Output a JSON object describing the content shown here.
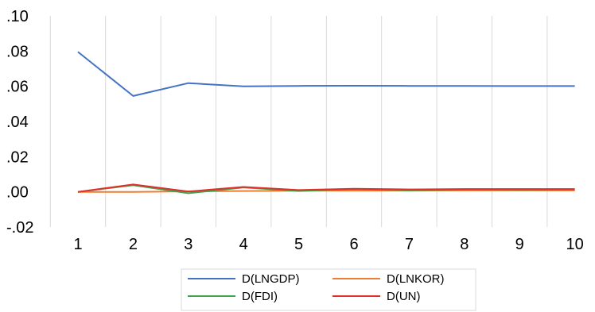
{
  "chart_data": {
    "type": "line",
    "title": "",
    "xlabel": "",
    "ylabel": "",
    "x": [
      1,
      2,
      3,
      4,
      5,
      6,
      7,
      8,
      9,
      10
    ],
    "x_tick_labels": [
      "1",
      "2",
      "3",
      "4",
      "5",
      "6",
      "7",
      "8",
      "9",
      "10"
    ],
    "ylim": [
      -0.02,
      0.1
    ],
    "y_ticks": [
      -0.02,
      0.0,
      0.02,
      0.04,
      0.06,
      0.08,
      0.1
    ],
    "y_tick_labels": [
      "-.02",
      ".00",
      ".02",
      ".04",
      ".06",
      ".08",
      ".10"
    ],
    "grid": "vertical",
    "legend_position": "bottom",
    "series": [
      {
        "name": "D(LNGDP)",
        "color": "#4472C4",
        "values": [
          0.0795,
          0.0545,
          0.0618,
          0.06,
          0.0602,
          0.0603,
          0.0602,
          0.0602,
          0.0601,
          0.0601
        ]
      },
      {
        "name": "D(LNKOR)",
        "color": "#ED7D31",
        "values": [
          0.0,
          0.0,
          0.0003,
          0.0005,
          0.0006,
          0.0007,
          0.0007,
          0.0008,
          0.0008,
          0.0008
        ]
      },
      {
        "name": "D(FDI)",
        "color": "#3FA34D",
        "values": [
          0.0,
          0.0038,
          -0.0008,
          0.0025,
          0.0005,
          0.0015,
          0.0008,
          0.0012,
          0.001,
          0.0012
        ]
      },
      {
        "name": "D(UN)",
        "color": "#E0302B",
        "values": [
          0.0,
          0.0042,
          0.0002,
          0.0028,
          0.001,
          0.0018,
          0.0014,
          0.0016,
          0.0016,
          0.0016
        ]
      }
    ]
  }
}
